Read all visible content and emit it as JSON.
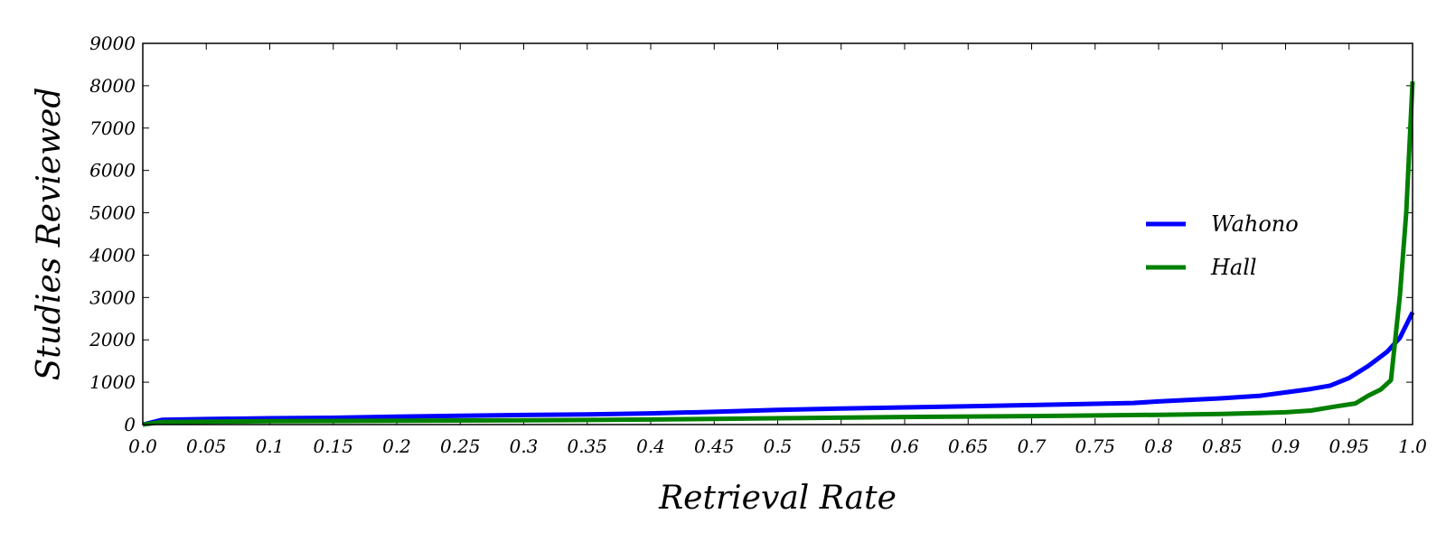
{
  "chart_data": {
    "type": "line",
    "xlabel": "Retrieval Rate",
    "ylabel": "Studies Reviewed",
    "xlim": [
      0.0,
      1.0
    ],
    "ylim": [
      0,
      9000
    ],
    "x_ticks": [
      "0.0",
      "0.05",
      "0.1",
      "0.15",
      "0.2",
      "0.25",
      "0.3",
      "0.35",
      "0.4",
      "0.45",
      "0.5",
      "0.55",
      "0.6",
      "0.65",
      "0.7",
      "0.75",
      "0.8",
      "0.85",
      "0.9",
      "0.95",
      "1.0"
    ],
    "y_ticks": [
      "0",
      "1000",
      "2000",
      "3000",
      "4000",
      "5000",
      "6000",
      "7000",
      "8000",
      "9000"
    ],
    "grid": false,
    "legend_position": "right",
    "series": [
      {
        "name": "Wahono",
        "color": "#0000ff",
        "points": [
          [
            0.0,
            0
          ],
          [
            0.015,
            110
          ],
          [
            0.05,
            130
          ],
          [
            0.1,
            150
          ],
          [
            0.15,
            160
          ],
          [
            0.2,
            185
          ],
          [
            0.25,
            210
          ],
          [
            0.3,
            225
          ],
          [
            0.35,
            240
          ],
          [
            0.4,
            265
          ],
          [
            0.45,
            300
          ],
          [
            0.5,
            345
          ],
          [
            0.55,
            380
          ],
          [
            0.6,
            405
          ],
          [
            0.65,
            430
          ],
          [
            0.7,
            460
          ],
          [
            0.75,
            490
          ],
          [
            0.78,
            510
          ],
          [
            0.8,
            545
          ],
          [
            0.85,
            620
          ],
          [
            0.88,
            680
          ],
          [
            0.9,
            760
          ],
          [
            0.92,
            840
          ],
          [
            0.935,
            920
          ],
          [
            0.95,
            1100
          ],
          [
            0.965,
            1380
          ],
          [
            0.98,
            1720
          ],
          [
            0.99,
            2050
          ],
          [
            1.0,
            2650
          ]
        ]
      },
      {
        "name": "Hall",
        "color": "#008000",
        "points": [
          [
            0.0,
            0
          ],
          [
            0.015,
            60
          ],
          [
            0.1,
            80
          ],
          [
            0.2,
            90
          ],
          [
            0.3,
            100
          ],
          [
            0.4,
            120
          ],
          [
            0.5,
            150
          ],
          [
            0.6,
            180
          ],
          [
            0.7,
            200
          ],
          [
            0.8,
            230
          ],
          [
            0.85,
            250
          ],
          [
            0.9,
            290
          ],
          [
            0.92,
            330
          ],
          [
            0.94,
            430
          ],
          [
            0.955,
            500
          ],
          [
            0.965,
            680
          ],
          [
            0.975,
            830
          ],
          [
            0.983,
            1050
          ],
          [
            0.99,
            3050
          ],
          [
            0.995,
            5000
          ],
          [
            1.0,
            8100
          ]
        ]
      }
    ]
  }
}
